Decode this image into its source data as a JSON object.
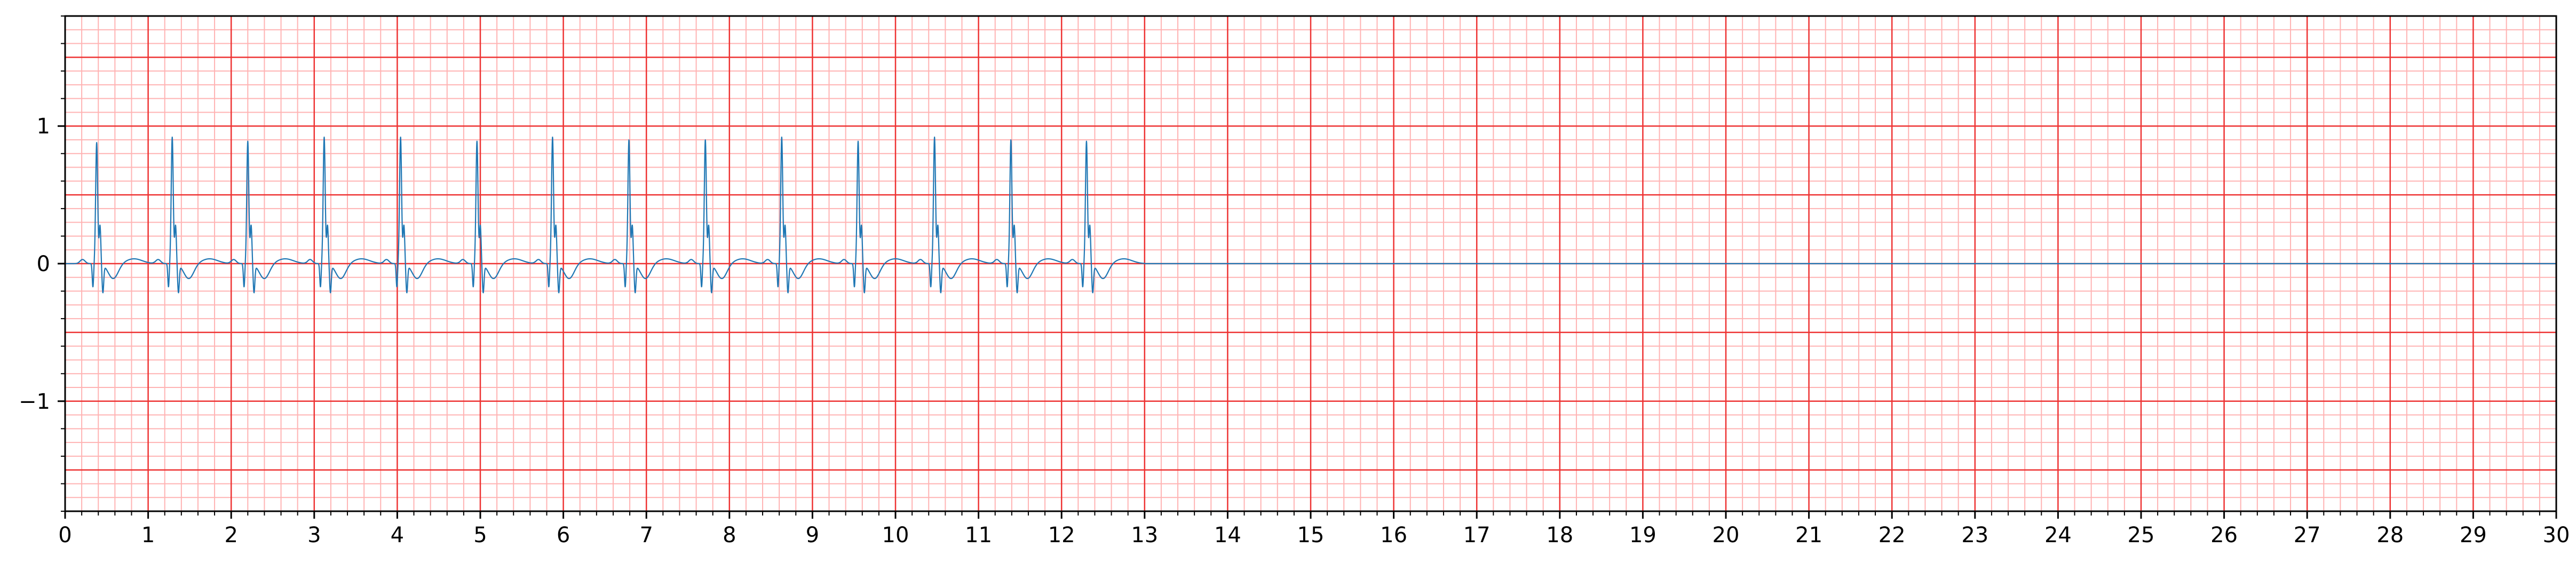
{
  "chart_data": {
    "type": "line",
    "title": "",
    "xlabel": "",
    "ylabel": "",
    "xlim": [
      0,
      30
    ],
    "ylim": [
      -1.8,
      1.8
    ],
    "grid": true,
    "grid_major_color": "#ee3333",
    "grid_minor_color": "#ffb3b3",
    "line_color": "#1f77b4",
    "x_ticks": [
      0,
      1,
      2,
      3,
      4,
      5,
      6,
      7,
      8,
      9,
      10,
      11,
      12,
      13,
      14,
      15,
      16,
      17,
      18,
      19,
      20,
      21,
      22,
      23,
      24,
      25,
      26,
      27,
      28,
      29,
      30
    ],
    "x_tick_labels": [
      "0",
      "1",
      "2",
      "3",
      "4",
      "5",
      "6",
      "7",
      "8",
      "9",
      "10",
      "11",
      "12",
      "13",
      "14",
      "15",
      "16",
      "17",
      "18",
      "19",
      "20",
      "21",
      "22",
      "23",
      "24",
      "25",
      "26",
      "27",
      "28",
      "29",
      "30"
    ],
    "y_ticks": [
      -1,
      0,
      1
    ],
    "y_tick_labels": [
      "−1",
      "0",
      "1"
    ],
    "signal": {
      "beat_times": [
        0.38,
        1.29,
        2.2,
        3.12,
        4.04,
        4.96,
        5.87,
        6.79,
        7.71,
        8.63,
        9.55,
        10.47,
        11.39,
        12.3
      ],
      "beat_peaks": [
        0.88,
        0.92,
        0.89,
        0.92,
        0.92,
        0.89,
        0.92,
        0.9,
        0.9,
        0.92,
        0.89,
        0.92,
        0.9,
        0.89
      ],
      "signal_end": 13.0,
      "flat_end": 30.0,
      "baseline": 0.0
    }
  }
}
